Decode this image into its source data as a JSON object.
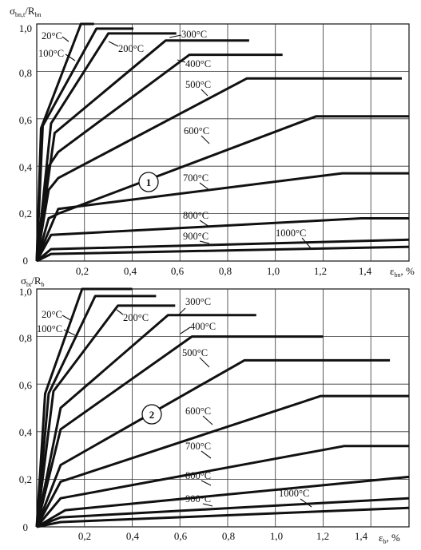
{
  "chart_data": [
    {
      "type": "line",
      "marker": "1",
      "ylabel": {
        "main": "σ",
        "sub": "bn,t",
        "tail": "/R",
        "tail_sub": "bn"
      },
      "xlabel": {
        "main": "ε",
        "sub": "bn",
        "tail": ", %"
      },
      "xlim": [
        0,
        1.56
      ],
      "ylim": [
        0,
        1.0
      ],
      "xticks": [
        "0,2",
        "0,4",
        "0,6",
        "0,8",
        "1,0",
        "1,2",
        "1,4"
      ],
      "yticks": [
        "0",
        "0,2",
        "0,4",
        "0,6",
        "0,8",
        "1,0"
      ],
      "grid": true,
      "series": [
        {
          "name": "20°C",
          "x": [
            0,
            0.018,
            0.185,
            0.24
          ],
          "y": [
            0,
            0.56,
            1.0,
            1.0
          ]
        },
        {
          "name": "100°C",
          "x": [
            0,
            0.025,
            0.25,
            0.405
          ],
          "y": [
            0,
            0.57,
            0.98,
            0.98
          ]
        },
        {
          "name": "200°C",
          "x": [
            0,
            0.06,
            0.3,
            0.585
          ],
          "y": [
            0,
            0.58,
            0.96,
            0.96
          ]
        },
        {
          "name": "300°C",
          "x": [
            0,
            0.075,
            0.54,
            0.89
          ],
          "y": [
            0,
            0.54,
            0.93,
            0.93
          ]
        },
        {
          "name": "400°C",
          "x": [
            0,
            0.05,
            0.09,
            0.64,
            1.03
          ],
          "y": [
            0,
            0.4,
            0.46,
            0.87,
            0.87
          ]
        },
        {
          "name": "500°C",
          "x": [
            0,
            0.05,
            0.09,
            0.88,
            1.53
          ],
          "y": [
            0,
            0.3,
            0.35,
            0.77,
            0.77
          ]
        },
        {
          "name": "600°C",
          "x": [
            0,
            0.05,
            0.09,
            1.17,
            1.56
          ],
          "y": [
            0,
            0.18,
            0.2,
            0.61,
            0.61
          ]
        },
        {
          "name": "700°C",
          "x": [
            0,
            0.04,
            0.09,
            1.28,
            1.56
          ],
          "y": [
            0,
            0.1,
            0.22,
            0.37,
            0.37
          ]
        },
        {
          "name": "800°C",
          "x": [
            0,
            0.06,
            1.36,
            1.56
          ],
          "y": [
            0,
            0.11,
            0.18,
            0.18
          ]
        },
        {
          "name": "900°C",
          "x": [
            0,
            0.06,
            1.56
          ],
          "y": [
            0,
            0.05,
            0.09
          ]
        },
        {
          "name": "1000°C",
          "x": [
            0,
            0.06,
            1.56
          ],
          "y": [
            0,
            0.03,
            0.06
          ]
        }
      ]
    },
    {
      "type": "line",
      "marker": "2",
      "ylabel": {
        "main": "σ",
        "sub": "bt",
        "tail": "/R",
        "tail_sub": "b"
      },
      "xlabel": {
        "main": "ε",
        "sub": "b",
        "tail": ", %"
      },
      "xlim": [
        0,
        1.56
      ],
      "ylim": [
        0,
        1.0
      ],
      "xticks": [
        "0,2",
        "0,4",
        "0,6",
        "0,8",
        "1,0",
        "1,2",
        "1,4"
      ],
      "yticks": [
        "0",
        "0,2",
        "0,4",
        "0,6",
        "0,8",
        "1,0"
      ],
      "grid": true,
      "series": [
        {
          "name": "20°C",
          "x": [
            0,
            0.035,
            0.19,
            0.4
          ],
          "y": [
            0,
            0.56,
            1.0,
            1.0
          ]
        },
        {
          "name": "100°C",
          "x": [
            0,
            0.05,
            0.245,
            0.5
          ],
          "y": [
            0,
            0.56,
            0.97,
            0.97
          ]
        },
        {
          "name": "200°C",
          "x": [
            0,
            0.07,
            0.34,
            0.58
          ],
          "y": [
            0,
            0.57,
            0.93,
            0.93
          ]
        },
        {
          "name": "300°C",
          "x": [
            0,
            0.1,
            0.55,
            0.92
          ],
          "y": [
            0,
            0.5,
            0.89,
            0.89
          ]
        },
        {
          "name": "400°C",
          "x": [
            0,
            0.1,
            0.65,
            1.2
          ],
          "y": [
            0,
            0.41,
            0.8,
            0.8
          ]
        },
        {
          "name": "500°C",
          "x": [
            0,
            0.1,
            0.87,
            1.48
          ],
          "y": [
            0,
            0.26,
            0.7,
            0.7
          ]
        },
        {
          "name": "600°C",
          "x": [
            0,
            0.1,
            1.19,
            1.56
          ],
          "y": [
            0,
            0.19,
            0.55,
            0.55
          ]
        },
        {
          "name": "700°C",
          "x": [
            0,
            0.1,
            1.29,
            1.56
          ],
          "y": [
            0,
            0.12,
            0.34,
            0.34
          ]
        },
        {
          "name": "800°C",
          "x": [
            0,
            0.12,
            1.56
          ],
          "y": [
            0,
            0.07,
            0.21
          ]
        },
        {
          "name": "900°C",
          "x": [
            0,
            0.1,
            1.56
          ],
          "y": [
            0,
            0.04,
            0.12
          ]
        },
        {
          "name": "1000°C",
          "x": [
            0,
            0.1,
            1.56
          ],
          "y": [
            0,
            0.02,
            0.08
          ]
        }
      ]
    }
  ]
}
